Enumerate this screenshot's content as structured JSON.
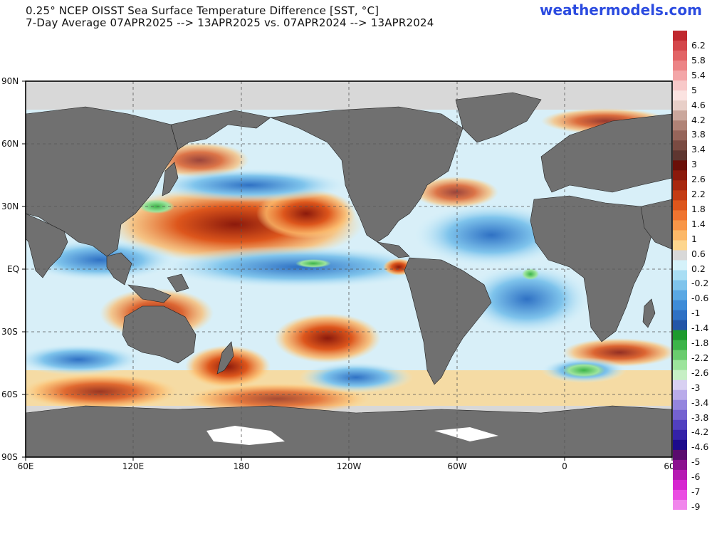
{
  "header": {
    "title_line1": "0.25° NCEP OISST Sea Surface Temperature Difference [SST, °C]",
    "title_line2": "7-Day Average 07APR2025 --> 13APR2025  vs. 07APR2024 --> 13APR2024",
    "brand": "weathermodels.com"
  },
  "axes": {
    "lat_labels": [
      "90N",
      "60N",
      "30N",
      "EQ",
      "30S",
      "60S",
      "90S"
    ],
    "lon_labels": [
      "60E",
      "120E",
      "180",
      "120W",
      "60W",
      "0",
      "60"
    ]
  },
  "colorbar": {
    "labels": [
      "6.2",
      "5.8",
      "5.4",
      "5",
      "4.6",
      "4.2",
      "3.8",
      "3.4",
      "3",
      "2.6",
      "2.2",
      "1.8",
      "1.4",
      "1",
      "0.6",
      "0.2",
      "-0.2",
      "-0.6",
      "-1",
      "-1.4",
      "-1.8",
      "-2.2",
      "-2.6",
      "-3",
      "-3.4",
      "-3.8",
      "-4.2",
      "-4.6",
      "-5",
      "-6",
      "-7",
      "-9"
    ],
    "colors": [
      "#c0282e",
      "#d4474b",
      "#e26466",
      "#ec8486",
      "#f3a6a8",
      "#f8c9c9",
      "#fbe3e1",
      "#e8cfc8",
      "#caa79c",
      "#b08376",
      "#96655a",
      "#7a4b42",
      "#5e3630",
      "#6a0f08",
      "#8b1a0c",
      "#a8280f",
      "#c43c14",
      "#dd561c",
      "#ef7430",
      "#f89648",
      "#fcb868",
      "#fdd68e",
      "#d8d8d8",
      "#d5f2fa",
      "#a9def4",
      "#7fc4ec",
      "#5aa8e4",
      "#3e8cd8",
      "#2f71c4",
      "#2456a8",
      "#1d9a2e",
      "#3cb449",
      "#6acc6e",
      "#9ce49c",
      "#c7efc5",
      "#d8d0f2",
      "#b9abea",
      "#9485de",
      "#7462d0",
      "#5140c0",
      "#3422a8",
      "#1c0b8c",
      "#5a0c6e",
      "#8b128f",
      "#b51ab2",
      "#d625d0",
      "#ea4de2",
      "#f187ec"
    ]
  }
}
